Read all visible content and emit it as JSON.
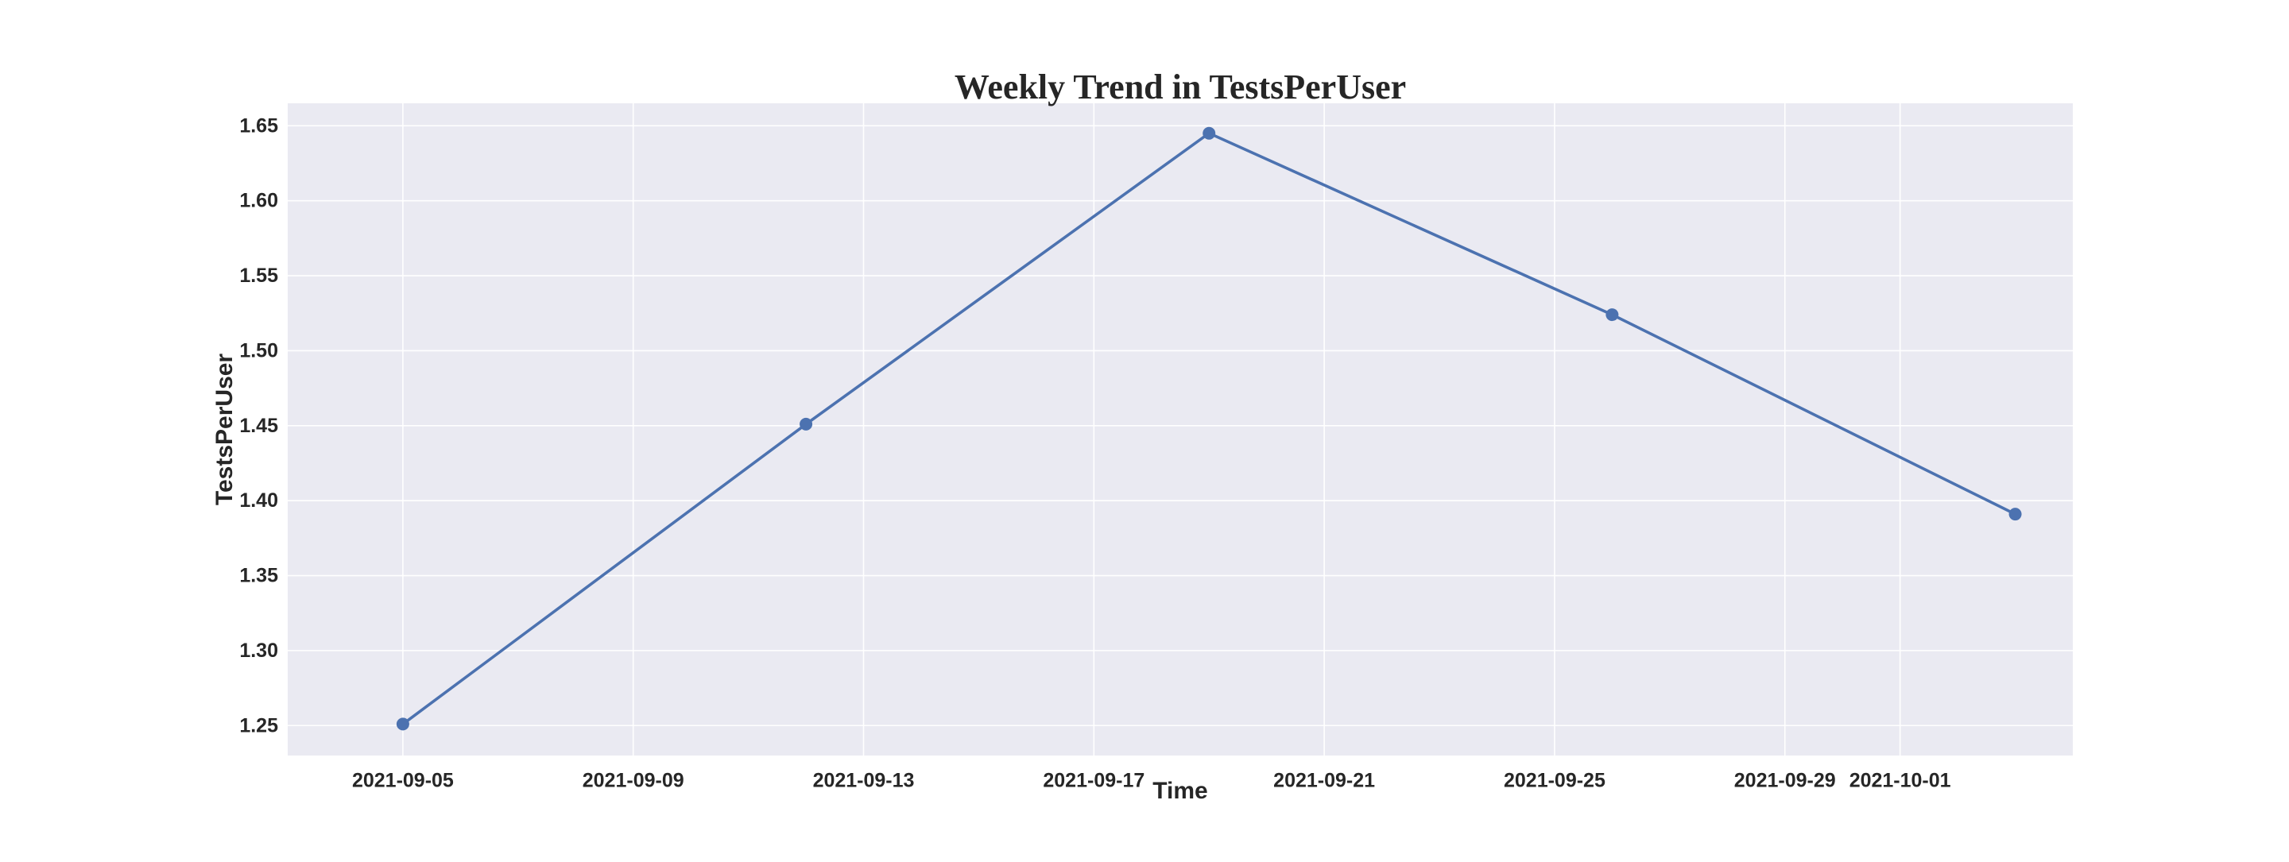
{
  "chart_data": {
    "type": "line",
    "title": "Weekly Trend in TestsPerUser",
    "xlabel": "Time",
    "ylabel": "TestsPerUser",
    "grid": true,
    "legend": "none",
    "x_type": "date",
    "xlim": [
      "2021-09-03",
      "2021-10-04"
    ],
    "ylim": [
      1.23,
      1.665
    ],
    "x_ticks": [
      "2021-09-05",
      "2021-09-09",
      "2021-09-13",
      "2021-09-17",
      "2021-09-21",
      "2021-09-25",
      "2021-09-29",
      "2021-10-01"
    ],
    "y_ticks": [
      "1.25",
      "1.30",
      "1.35",
      "1.40",
      "1.45",
      "1.50",
      "1.55",
      "1.60",
      "1.65"
    ],
    "series": [
      {
        "x": [
          "2021-09-05",
          "2021-09-12",
          "2021-09-19",
          "2021-09-26",
          "2021-10-03"
        ],
        "values": [
          1.251,
          1.451,
          1.645,
          1.524,
          1.391
        ]
      }
    ],
    "colors": {
      "line": "#4c72b0",
      "plot_background": "#eaeaf2",
      "grid": "#ffffff",
      "text": "#262626"
    }
  }
}
